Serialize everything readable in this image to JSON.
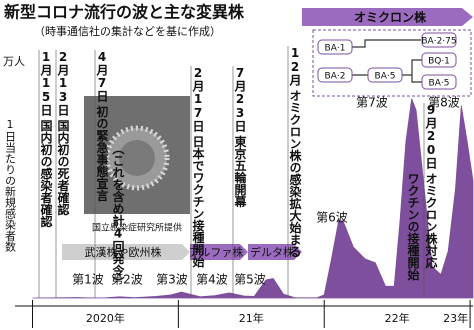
{
  "chart_data": {
    "type": "area",
    "title": "新型コロナ流行の波と主な変異株",
    "subtitle": "（時事通信社の集計などを基に作成）",
    "y_unit": "万人",
    "y_label": "1日当たりの新規感染者数",
    "x": [
      2020.0,
      2020.25,
      2020.3,
      2020.4,
      2020.5,
      2020.6,
      2020.7,
      2020.85,
      2020.95,
      2021.02,
      2021.15,
      2021.25,
      2021.35,
      2021.45,
      2021.52,
      2021.6,
      2021.65,
      2021.72,
      2021.8,
      2021.95,
      2022.0,
      2022.05,
      2022.1,
      2022.13,
      2022.2,
      2022.28,
      2022.35,
      2022.42,
      2022.48,
      2022.52,
      2022.56,
      2022.6,
      2022.63,
      2022.68,
      2022.74,
      2022.8,
      2022.85,
      2022.9,
      2022.94,
      2022.98,
      2023.02
    ],
    "series": [
      {
        "color": "#7d4f9c",
        "values": [
          0,
          0.05,
          0.07,
          0.01,
          0.03,
          0.15,
          0.05,
          0.2,
          0.4,
          0.75,
          0.15,
          0.3,
          0.65,
          0.25,
          0.2,
          2.3,
          2.5,
          0.5,
          0.03,
          0.02,
          0.4,
          5.0,
          10.0,
          9.8,
          6.5,
          5.0,
          4.5,
          1.5,
          1.5,
          10.0,
          20,
          25.5,
          24,
          15,
          4,
          3,
          6,
          14,
          24.6,
          20,
          15
        ]
      }
    ],
    "xlim": [
      2019.88,
      2023.02
    ],
    "ylim": [
      0,
      27
    ],
    "xticks": [
      {
        "value": 2020,
        "label": "2020年"
      },
      {
        "value": 2021,
        "label": "21年"
      },
      {
        "value": 2022,
        "label": "22年"
      },
      {
        "value": 2023,
        "label": "23年"
      }
    ],
    "events": [
      {
        "date": "1月15日",
        "text": "国内初の感染者確認"
      },
      {
        "date": "2月13日",
        "text": "国内初の死者確認"
      },
      {
        "date": "4月7日",
        "text": "初の緊急事態宣言",
        "note": "（これを含め計4回発令）"
      },
      {
        "date": "2月17日",
        "text": "日本でワクチン接種開始"
      },
      {
        "date": "7月23日",
        "text": "東京五輪開幕"
      },
      {
        "date": "12月",
        "text": "オミクロン株の感染拡大始まる"
      },
      {
        "date": "9月20日",
        "text": "オミクロン株対応",
        "note": "ワクチンの接種開始"
      }
    ],
    "waves": [
      "第1波",
      "第2波",
      "第3波",
      "第4波",
      "第5波",
      "第6波",
      "第7波",
      "第8波"
    ],
    "variants": [
      "武漢株や欧州株",
      "アルファ株",
      "デルタ株",
      "オミクロン株"
    ],
    "lineages": [
      "BA·1",
      "BA·2",
      "BA·2·75",
      "BQ·1",
      "BA·5",
      "BA·5"
    ],
    "photo_credit": "国立感染症研究所提供"
  }
}
